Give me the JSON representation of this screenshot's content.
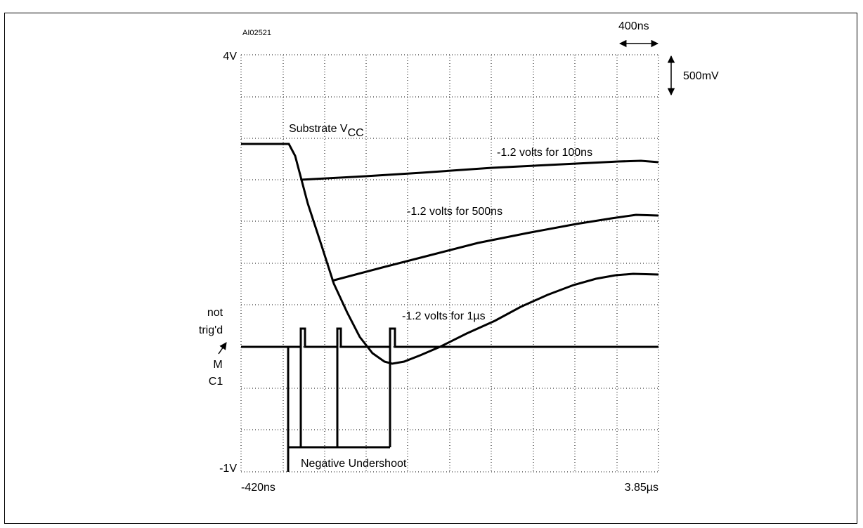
{
  "figure": {
    "id_code": "AI02521",
    "time_scale": "400ns",
    "voltage_scale": "500mV",
    "y_top_label": "4V",
    "y_bottom_label": "-1V",
    "x_left_label": "-420ns",
    "x_right_label": "3.85µs",
    "substrate_label": "Substrate V",
    "substrate_subscript": "CC",
    "curve_labels": [
      "-1.2 volts for 100ns",
      "-1.2 volts for 500ns",
      "-1.2 volts for 1µs"
    ],
    "undershoot_label": "Negative Undershoot",
    "trigger_labels": [
      "not",
      "trig'd",
      "M",
      "C1"
    ]
  }
}
